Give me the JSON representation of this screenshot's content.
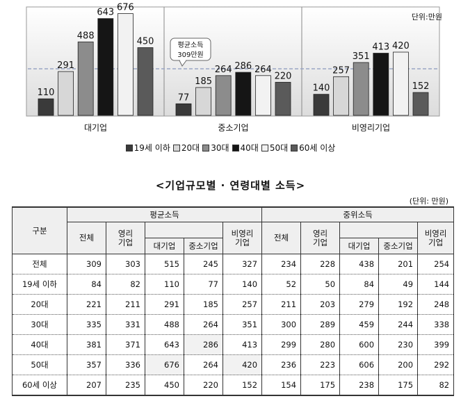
{
  "chart_data": {
    "type": "bar",
    "unit_label": "단위:만원",
    "categories": [
      "대기업",
      "중소기업",
      "비영리기업"
    ],
    "series": [
      {
        "name": "19세 이하",
        "color": "#3a3a3a",
        "values": [
          110,
          77,
          140
        ]
      },
      {
        "name": "20대",
        "color": "#d7d7d7",
        "values": [
          291,
          185,
          257
        ]
      },
      {
        "name": "30대",
        "color": "#8c8c8c",
        "values": [
          488,
          264,
          351
        ]
      },
      {
        "name": "40대",
        "color": "#151515",
        "values": [
          643,
          286,
          413
        ]
      },
      {
        "name": "50대",
        "color": "#f2f2f2",
        "values": [
          676,
          264,
          420
        ]
      },
      {
        "name": "60세 이상",
        "color": "#5a5a5a",
        "values": [
          450,
          220,
          152
        ]
      }
    ],
    "reference_line": {
      "value": 309,
      "label_line1": "평균소득",
      "label_line2": "309만원"
    },
    "ylim": [
      0,
      720
    ],
    "grid": false,
    "legend_position": "bottom"
  },
  "table": {
    "title": "<기업규모별 · 연령대별 소득>",
    "unit": "(단위: 만원)",
    "corner": "구분",
    "group_avg": "평균소득",
    "group_median": "중위소득",
    "col_total": "전체",
    "col_profit_l1": "영리",
    "col_profit_l2": "기업",
    "col_large": "대기업",
    "col_sme": "중소기업",
    "col_np_l1": "비영리",
    "col_np_l2": "기업",
    "rows": [
      {
        "label": "전체",
        "v": [
          "309",
          "303",
          "515",
          "245",
          "327",
          "234",
          "228",
          "438",
          "201",
          "254"
        ]
      },
      {
        "label": "19세 이하",
        "v": [
          "84",
          "82",
          "110",
          "77",
          "140",
          "52",
          "50",
          "84",
          "49",
          "144"
        ]
      },
      {
        "label": "20대",
        "v": [
          "221",
          "211",
          "291",
          "185",
          "257",
          "211",
          "203",
          "279",
          "192",
          "248"
        ]
      },
      {
        "label": "30대",
        "v": [
          "335",
          "331",
          "488",
          "264",
          "351",
          "300",
          "289",
          "459",
          "244",
          "338"
        ]
      },
      {
        "label": "40대",
        "v": [
          "381",
          "371",
          "643",
          "286",
          "413",
          "299",
          "280",
          "600",
          "230",
          "399"
        ]
      },
      {
        "label": "50대",
        "v": [
          "357",
          "336",
          "676",
          "264",
          "420",
          "236",
          "223",
          "606",
          "200",
          "292"
        ]
      },
      {
        "label": "60세 이상",
        "v": [
          "207",
          "235",
          "450",
          "220",
          "152",
          "154",
          "175",
          "238",
          "175",
          "82"
        ]
      }
    ]
  }
}
